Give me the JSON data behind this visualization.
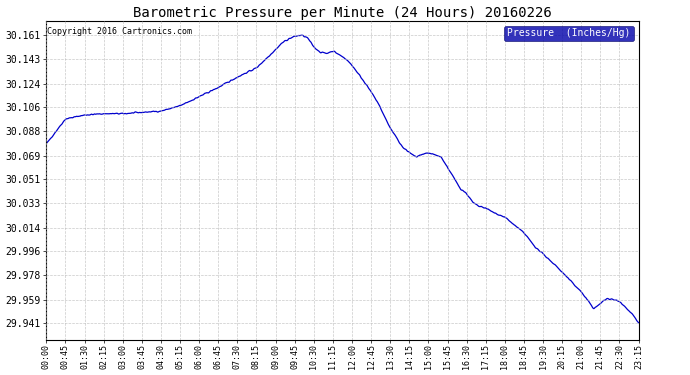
{
  "title": "Barometric Pressure per Minute (24 Hours) 20160226",
  "copyright": "Copyright 2016 Cartronics.com",
  "legend_label": "Pressure  (Inches/Hg)",
  "line_color": "#0000cc",
  "background_color": "#ffffff",
  "grid_color": "#bbbbbb",
  "yticks": [
    29.941,
    29.959,
    29.978,
    29.996,
    30.014,
    30.033,
    30.051,
    30.069,
    30.088,
    30.106,
    30.124,
    30.143,
    30.161
  ],
  "ylim": [
    29.928,
    30.172
  ],
  "xtick_labels": [
    "00:00",
    "00:45",
    "01:30",
    "02:15",
    "03:00",
    "03:45",
    "04:30",
    "05:15",
    "06:00",
    "06:45",
    "07:30",
    "08:15",
    "09:00",
    "09:45",
    "10:30",
    "11:15",
    "12:00",
    "12:45",
    "13:30",
    "14:15",
    "15:00",
    "15:45",
    "16:30",
    "17:15",
    "18:00",
    "18:45",
    "19:30",
    "20:15",
    "21:00",
    "21:45",
    "22:30",
    "23:15"
  ],
  "legend_bg": "#0000aa",
  "legend_fg": "#ffffff",
  "keypoints_t": [
    0,
    45,
    90,
    135,
    180,
    225,
    270,
    315,
    360,
    405,
    450,
    495,
    540,
    555,
    570,
    585,
    600,
    615,
    630,
    645,
    660,
    675,
    690,
    705,
    720,
    750,
    780,
    810,
    840,
    870,
    900,
    930,
    960,
    975,
    990,
    1005,
    1020,
    1035,
    1050,
    1065,
    1080,
    1095,
    1110,
    1125,
    1140,
    1155,
    1170,
    1200,
    1230,
    1260,
    1290,
    1320,
    1350,
    1380,
    1395
  ],
  "keypoints_v": [
    30.078,
    30.097,
    30.1,
    30.101,
    30.101,
    30.102,
    30.103,
    30.107,
    30.114,
    30.121,
    30.129,
    30.136,
    30.15,
    30.155,
    30.158,
    30.16,
    30.161,
    30.159,
    30.152,
    30.148,
    30.147,
    30.149,
    30.146,
    30.143,
    30.138,
    30.125,
    30.11,
    30.09,
    30.075,
    30.068,
    30.071,
    30.068,
    30.052,
    30.044,
    30.04,
    30.033,
    30.03,
    30.029,
    30.026,
    30.024,
    30.022,
    30.018,
    30.014,
    30.01,
    30.004,
    29.998,
    29.994,
    29.985,
    29.975,
    29.965,
    29.952,
    29.96,
    29.958,
    29.948,
    29.941
  ]
}
